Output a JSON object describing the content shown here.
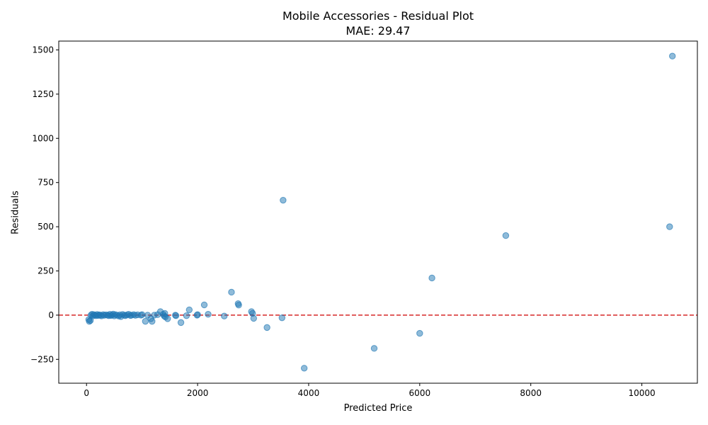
{
  "chart_data": {
    "type": "scatter",
    "title": "Mobile Accessories - Residual Plot",
    "subtitle": "MAE: 29.47",
    "xlabel": "Predicted Price",
    "ylabel": "Residuals",
    "xlim": [
      -500,
      11000
    ],
    "ylim": [
      -385,
      1550
    ],
    "xticks": [
      0,
      2000,
      4000,
      6000,
      8000,
      10000
    ],
    "xtick_labels": [
      "0",
      "2000",
      "4000",
      "6000",
      "8000",
      "10000"
    ],
    "yticks": [
      -250,
      0,
      250,
      500,
      750,
      1000,
      1250,
      1500
    ],
    "ytick_labels": [
      "−250",
      "0",
      "250",
      "500",
      "750",
      "1000",
      "1250",
      "1500"
    ],
    "grid": false,
    "reference_line": {
      "y": 0,
      "color": "#d62728",
      "style": "dashed"
    },
    "marker_color": "#1f77b4",
    "points": [
      {
        "x": 40,
        "y": -25
      },
      {
        "x": 50,
        "y": -35
      },
      {
        "x": 70,
        "y": -30
      },
      {
        "x": 80,
        "y": 0
      },
      {
        "x": 100,
        "y": 5
      },
      {
        "x": 110,
        "y": -5
      },
      {
        "x": 130,
        "y": 3
      },
      {
        "x": 150,
        "y": 0
      },
      {
        "x": 170,
        "y": -3
      },
      {
        "x": 190,
        "y": 4
      },
      {
        "x": 210,
        "y": -2
      },
      {
        "x": 230,
        "y": 2
      },
      {
        "x": 250,
        "y": 0
      },
      {
        "x": 270,
        "y": -4
      },
      {
        "x": 300,
        "y": 3
      },
      {
        "x": 320,
        "y": -1
      },
      {
        "x": 350,
        "y": 2
      },
      {
        "x": 380,
        "y": 0
      },
      {
        "x": 400,
        "y": -3
      },
      {
        "x": 420,
        "y": 5
      },
      {
        "x": 440,
        "y": -2
      },
      {
        "x": 460,
        "y": 1
      },
      {
        "x": 480,
        "y": 6
      },
      {
        "x": 500,
        "y": -4
      },
      {
        "x": 520,
        "y": 3
      },
      {
        "x": 550,
        "y": 0
      },
      {
        "x": 580,
        "y": -5
      },
      {
        "x": 600,
        "y": 2
      },
      {
        "x": 620,
        "y": -8
      },
      {
        "x": 650,
        "y": 4
      },
      {
        "x": 680,
        "y": 0
      },
      {
        "x": 700,
        "y": -3
      },
      {
        "x": 730,
        "y": 2
      },
      {
        "x": 760,
        "y": 5
      },
      {
        "x": 790,
        "y": -2
      },
      {
        "x": 810,
        "y": 0
      },
      {
        "x": 850,
        "y": 3
      },
      {
        "x": 880,
        "y": -1
      },
      {
        "x": 920,
        "y": 2
      },
      {
        "x": 980,
        "y": 0
      },
      {
        "x": 1000,
        "y": 3
      },
      {
        "x": 1060,
        "y": -35
      },
      {
        "x": 1100,
        "y": 0
      },
      {
        "x": 1160,
        "y": -20
      },
      {
        "x": 1180,
        "y": -35
      },
      {
        "x": 1220,
        "y": 0
      },
      {
        "x": 1280,
        "y": 3
      },
      {
        "x": 1330,
        "y": 20
      },
      {
        "x": 1380,
        "y": 5
      },
      {
        "x": 1400,
        "y": -5
      },
      {
        "x": 1410,
        "y": 10
      },
      {
        "x": 1420,
        "y": -10
      },
      {
        "x": 1460,
        "y": -20
      },
      {
        "x": 1600,
        "y": 0
      },
      {
        "x": 1610,
        "y": -3
      },
      {
        "x": 1700,
        "y": -42
      },
      {
        "x": 1800,
        "y": -3
      },
      {
        "x": 1850,
        "y": 30
      },
      {
        "x": 1990,
        "y": 0
      },
      {
        "x": 2000,
        "y": 3
      },
      {
        "x": 2120,
        "y": 58
      },
      {
        "x": 2190,
        "y": 5
      },
      {
        "x": 2480,
        "y": -5
      },
      {
        "x": 2610,
        "y": 130
      },
      {
        "x": 2730,
        "y": 65
      },
      {
        "x": 2740,
        "y": 57
      },
      {
        "x": 2970,
        "y": 20
      },
      {
        "x": 2990,
        "y": 10
      },
      {
        "x": 3010,
        "y": -18
      },
      {
        "x": 3250,
        "y": -70
      },
      {
        "x": 3520,
        "y": -15
      },
      {
        "x": 3540,
        "y": 650
      },
      {
        "x": 3920,
        "y": -300
      },
      {
        "x": 5180,
        "y": -188
      },
      {
        "x": 6000,
        "y": -103
      },
      {
        "x": 6220,
        "y": 210
      },
      {
        "x": 7550,
        "y": 450
      },
      {
        "x": 10500,
        "y": 500
      },
      {
        "x": 10550,
        "y": 1465
      }
    ]
  }
}
